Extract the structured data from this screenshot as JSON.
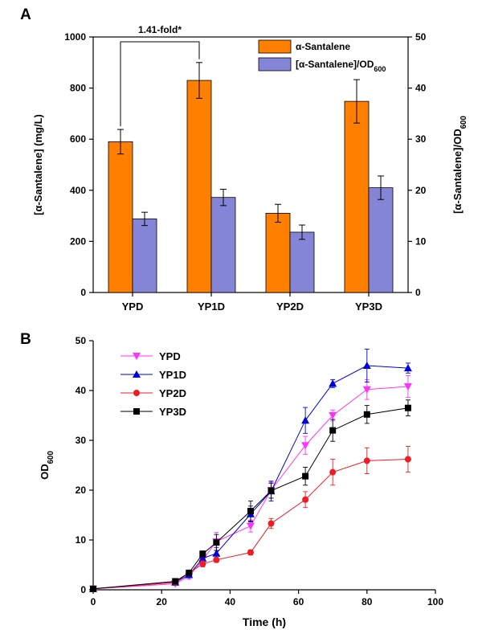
{
  "chart_data": [
    {
      "panel": "A",
      "type": "bar",
      "categories": [
        "YPD",
        "YP1D",
        "YP2D",
        "YP3D"
      ],
      "series": [
        {
          "name": "α-Santalene",
          "axis": "left",
          "color": "#ff7f00",
          "values": [
            590,
            830,
            310,
            748
          ],
          "errors": [
            48,
            70,
            35,
            85
          ]
        },
        {
          "name": "[α-Santalene]/OD600",
          "axis": "right",
          "color": "#8585d8",
          "values": [
            14.4,
            18.6,
            11.8,
            20.5
          ],
          "errors": [
            1.3,
            1.6,
            1.4,
            2.3
          ]
        }
      ],
      "ylabel": "[α-Santalene] (mg/L)",
      "ylabel2": "[α-Santalene]/OD600",
      "ylim": [
        0,
        1000
      ],
      "ylim2": [
        0,
        50
      ],
      "yticks": [
        0,
        200,
        400,
        600,
        800,
        1000
      ],
      "yticks2": [
        0,
        10,
        20,
        30,
        40,
        50
      ],
      "annotation": "1.41-fold*",
      "legend": "top-right"
    },
    {
      "panel": "B",
      "type": "line",
      "xlabel": "Time (h)",
      "ylabel": "OD600",
      "xlim": [
        0,
        100
      ],
      "ylim": [
        0,
        50
      ],
      "xticks": [
        0,
        20,
        40,
        60,
        80,
        100
      ],
      "yticks": [
        0,
        10,
        20,
        30,
        40,
        50
      ],
      "x": [
        0,
        24,
        28,
        32,
        36,
        46,
        52,
        62,
        70,
        80,
        92
      ],
      "series": [
        {
          "name": "YPD",
          "color": "#ff33ff",
          "marker": "triangle-down",
          "values": [
            0.2,
            1.2,
            2.7,
            6.0,
            9.7,
            12.8,
            20.0,
            29.0,
            35.0,
            40.2,
            40.8
          ],
          "errors": [
            0,
            0.3,
            0.5,
            0.7,
            1.8,
            1.2,
            1.6,
            1.8,
            1.1,
            2.0,
            2.2
          ]
        },
        {
          "name": "YP1D",
          "color": "#0000dd",
          "marker": "triangle-up",
          "values": [
            0.2,
            1.5,
            3.0,
            6.3,
            7.3,
            15.2,
            19.8,
            34.0,
            41.4,
            45.0,
            44.5
          ],
          "errors": [
            0,
            0.3,
            0.5,
            0.6,
            1.2,
            1.6,
            2.0,
            2.6,
            0.8,
            3.3,
            1.0
          ]
        },
        {
          "name": "YP2D",
          "color": "#ee1c24",
          "marker": "circle",
          "values": [
            0.2,
            1.5,
            3.4,
            5.2,
            6.0,
            7.5,
            13.3,
            18.1,
            23.6,
            25.9,
            26.2
          ],
          "errors": [
            0,
            0.3,
            0.5,
            0.6,
            0.5,
            0.5,
            1.0,
            1.6,
            2.6,
            2.6,
            2.6
          ]
        },
        {
          "name": "YP3D",
          "color": "#000000",
          "marker": "square",
          "values": [
            0.2,
            1.7,
            3.4,
            7.2,
            9.5,
            15.8,
            19.9,
            22.8,
            32.0,
            35.2,
            36.5
          ],
          "errors": [
            0,
            0.3,
            0.5,
            0.6,
            1.6,
            2.0,
            1.5,
            1.8,
            2.2,
            1.8,
            1.6
          ]
        }
      ],
      "legend": "top-left"
    }
  ]
}
